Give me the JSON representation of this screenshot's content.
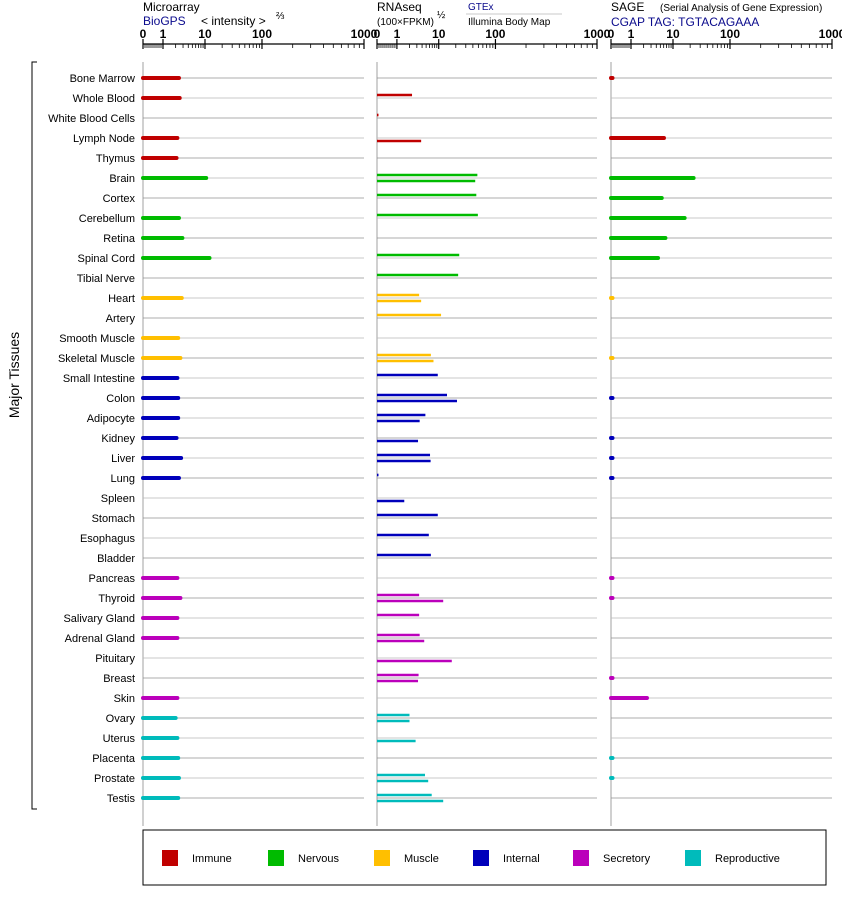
{
  "header": {
    "microarray_title": "Microarray",
    "microarray_source": "BioGPS",
    "microarray_units": "< intensity >",
    "microarray_exponent": "⅔",
    "rnaseq_title": "RNAseq",
    "rnaseq_units": "(100×FPKM)",
    "rnaseq_exponent": "½",
    "rnaseq_source_1": "GTEx",
    "rnaseq_source_2": "Illumina Body Map",
    "sage_title": "SAGE",
    "sage_subtitle": "(Serial Analysis of Gene Expression)",
    "sage_tag": "CGAP TAG: TGTACAGAAA"
  },
  "chart_data": {
    "type": "bar",
    "orientation": "horizontal",
    "ylabel": "Major Tissues",
    "axis_ticks": [
      "0",
      "1",
      "10",
      "100",
      "1000"
    ],
    "xlim": [
      0,
      1000
    ],
    "scale": "logarithmic",
    "categories": [
      "Bone Marrow",
      "Whole Blood",
      "White Blood Cells",
      "Lymph Node",
      "Thymus",
      "Brain",
      "Cortex",
      "Cerebellum",
      "Retina",
      "Spinal Cord",
      "Tibial Nerve",
      "Heart",
      "Artery",
      "Smooth Muscle",
      "Skeletal Muscle",
      "Small Intestine",
      "Colon",
      "Adipocyte",
      "Kidney",
      "Liver",
      "Lung",
      "Spleen",
      "Stomach",
      "Esophagus",
      "Bladder",
      "Pancreas",
      "Thyroid",
      "Salivary Gland",
      "Adrenal Gland",
      "Pituitary",
      "Breast",
      "Skin",
      "Ovary",
      "Uterus",
      "Placenta",
      "Prostate",
      "Testis"
    ],
    "tissue_group": [
      "Immune",
      "Immune",
      "Immune",
      "Immune",
      "Immune",
      "Nervous",
      "Nervous",
      "Nervous",
      "Nervous",
      "Nervous",
      "Nervous",
      "Muscle",
      "Muscle",
      "Muscle",
      "Muscle",
      "Internal",
      "Internal",
      "Internal",
      "Internal",
      "Internal",
      "Internal",
      "Internal",
      "Internal",
      "Internal",
      "Internal",
      "Secretory",
      "Secretory",
      "Secretory",
      "Secretory",
      "Secretory",
      "Secretory",
      "Secretory",
      "Reproductive",
      "Reproductive",
      "Reproductive",
      "Reproductive",
      "Reproductive"
    ],
    "legend": [
      {
        "label": "Immune",
        "color": "#c00000"
      },
      {
        "label": "Nervous",
        "color": "#00bb00"
      },
      {
        "label": "Muscle",
        "color": "#ffbf00"
      },
      {
        "label": "Internal",
        "color": "#0000bb"
      },
      {
        "label": "Secretory",
        "color": "#bb00bb"
      },
      {
        "label": "Reproductive",
        "color": "#00bbbb"
      }
    ],
    "series": [
      {
        "name": "Microarray",
        "values": [
          2.4,
          2.5,
          null,
          2.2,
          2.1,
          10.5,
          null,
          2.4,
          2.9,
          12,
          null,
          2.8,
          null,
          2.3,
          2.6,
          2.2,
          2.3,
          2.3,
          2.1,
          2.7,
          2.4,
          null,
          null,
          null,
          null,
          2.2,
          2.6,
          2.2,
          2.2,
          null,
          null,
          2.2,
          2.0,
          2.2,
          2.3,
          2.4,
          2.3
        ]
      },
      {
        "name": "GTEx",
        "values": [
          null,
          2.3,
          0.02,
          null,
          null,
          48,
          46,
          49,
          null,
          23,
          22,
          3.4,
          11,
          null,
          6.5,
          9.5,
          14,
          4.8,
          null,
          6.2,
          0.02,
          null,
          9.5,
          5.8,
          6.5,
          null,
          3.4,
          3.4,
          3.5,
          null,
          3.3,
          null,
          2.0,
          null,
          null,
          4.7,
          6.8
        ]
      },
      {
        "name": "Illumina Body Map",
        "values": [
          null,
          null,
          null,
          3.8,
          null,
          44,
          null,
          null,
          null,
          null,
          null,
          3.8,
          null,
          null,
          7.5,
          null,
          21,
          3.5,
          3.2,
          6.4,
          null,
          1.5,
          null,
          null,
          null,
          null,
          12,
          null,
          4.5,
          17,
          3.2,
          null,
          2.0,
          2.8,
          null,
          5.6,
          12
        ]
      },
      {
        "name": "SAGE",
        "values": [
          0.05,
          null,
          null,
          6.1,
          null,
          23,
          5.4,
          16,
          6.6,
          4.4,
          null,
          0.01,
          null,
          null,
          0.01,
          null,
          0.05,
          null,
          0.05,
          0.05,
          0.05,
          null,
          null,
          null,
          null,
          0.05,
          0.05,
          null,
          null,
          null,
          0.05,
          2.4,
          null,
          null,
          0.05,
          0.05,
          null
        ]
      }
    ]
  }
}
